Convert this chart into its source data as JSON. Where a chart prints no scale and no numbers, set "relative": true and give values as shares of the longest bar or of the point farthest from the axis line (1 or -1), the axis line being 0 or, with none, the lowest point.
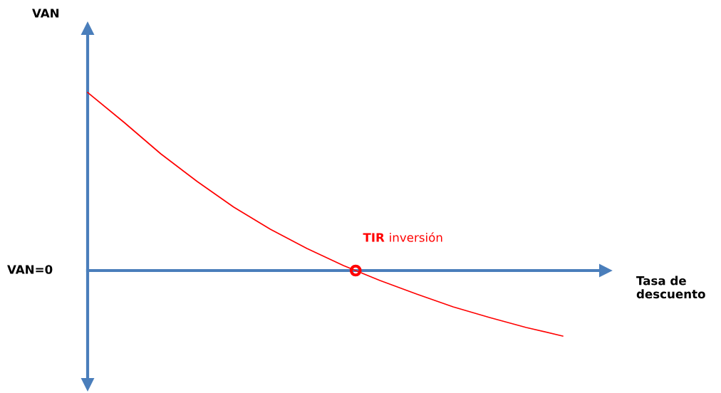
{
  "chart_data": {
    "type": "line",
    "relative": true,
    "xlabel": "Tasa de descuento",
    "categories": [
      null,
      null,
      null,
      null,
      null,
      null,
      null,
      null,
      null,
      null,
      null,
      null,
      null,
      null
    ],
    "series": [
      {
        "color": "#ff0000",
        "values": [
          1,
          0.832,
          0.656,
          0.5,
          0.356,
          0.232,
          0.124,
          0.028,
          -0.056,
          -0.132,
          -0.204,
          -0.264,
          -0.32,
          -0.368
        ]
      }
    ],
    "ref_lines": [
      {
        "axis": "y",
        "value": 0,
        "label": "VAN=0",
        "color": "#4a7ebb"
      }
    ],
    "annotations": [
      "VAN",
      "TIR inversión"
    ],
    "legend": false,
    "marker": "none",
    "line_style": "solid"
  }
}
